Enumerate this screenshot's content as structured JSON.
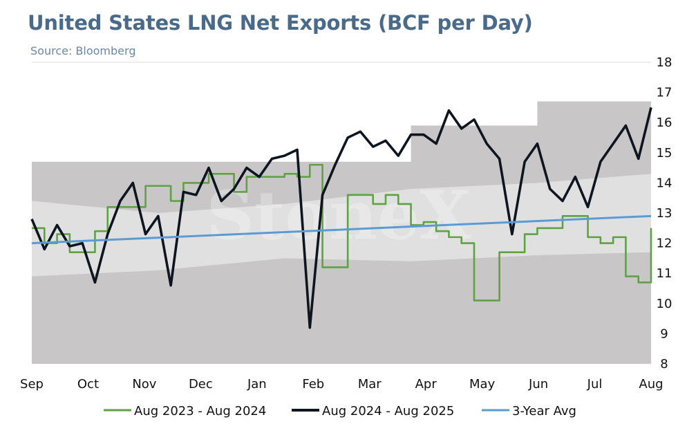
{
  "header": {
    "title": "United States LNG Net Exports (BCF per Day)",
    "source": "Source: Bloomberg"
  },
  "watermark": "StoneX",
  "chart_data": {
    "type": "line",
    "xlabel": "",
    "ylabel": "",
    "ylim": [
      8,
      18
    ],
    "yticks": [
      8,
      9,
      10,
      11,
      12,
      13,
      14,
      15,
      16,
      17,
      18
    ],
    "x_months": [
      "Sep",
      "Oct",
      "Nov",
      "Dec",
      "Jan",
      "Feb",
      "Mar",
      "Apr",
      "May",
      "Jun",
      "Jul",
      "Aug"
    ],
    "x_note": "x values are week indices from start of September (0) to mid-August (49)",
    "legend_position": "bottom",
    "colors": {
      "aug23": "#5ea243",
      "aug24": "#0d1620",
      "avg3y": "#5b9bd5",
      "band_outer": "#c8c6c6",
      "band_inner": "#e0e0e0"
    },
    "range_band": {
      "x": [
        0,
        10,
        20,
        30,
        40,
        49
      ],
      "max": [
        14.7,
        14.7,
        14.7,
        15.9,
        16.7,
        16.7
      ],
      "min": [
        8.0,
        8.0,
        8.0,
        8.0,
        8.0,
        8.0
      ]
    },
    "inner_band": {
      "x": [
        0,
        10,
        20,
        30,
        40,
        49
      ],
      "upper": [
        13.4,
        13.0,
        13.3,
        13.8,
        14.0,
        14.3
      ],
      "lower": [
        10.9,
        11.1,
        11.5,
        11.4,
        11.6,
        11.7
      ]
    },
    "series": [
      {
        "name": "Aug 2023 - Aug 2024",
        "x": [
          0,
          1,
          2,
          3,
          4,
          5,
          6,
          7,
          8,
          9,
          10,
          11,
          12,
          13,
          14,
          15,
          16,
          17,
          18,
          19,
          20,
          21,
          22,
          23,
          24,
          25,
          26,
          27,
          28,
          29,
          30,
          31,
          32,
          33,
          34,
          35,
          36,
          37,
          38,
          39,
          40,
          41,
          42,
          43,
          44,
          45,
          46,
          47,
          48,
          49
        ],
        "values": [
          12.5,
          12.0,
          12.3,
          11.7,
          11.7,
          12.4,
          13.2,
          13.2,
          13.2,
          13.9,
          13.9,
          13.4,
          14.0,
          14.0,
          14.3,
          14.3,
          13.7,
          14.2,
          14.2,
          14.2,
          14.3,
          14.2,
          14.6,
          11.2,
          11.2,
          13.6,
          13.6,
          13.3,
          13.6,
          13.3,
          12.6,
          12.7,
          12.4,
          12.2,
          12.0,
          10.1,
          10.1,
          11.7,
          11.7,
          12.3,
          12.5,
          12.5,
          12.9,
          12.9,
          12.2,
          12.0,
          12.2,
          10.9,
          10.7,
          12.5
        ]
      },
      {
        "name": "Aug 2024 - Aug 2025",
        "x": [
          0,
          1,
          2,
          3,
          4,
          5,
          6,
          7,
          8,
          9,
          10,
          11,
          12,
          13,
          14,
          15,
          16,
          17,
          18,
          19,
          20,
          21,
          22,
          23,
          24,
          25,
          26,
          27,
          28,
          29,
          30,
          31,
          32,
          33,
          34,
          35,
          36,
          37,
          38,
          39,
          40,
          41,
          42,
          43,
          44,
          45,
          46,
          47,
          48,
          49
        ],
        "values": [
          12.8,
          11.8,
          12.6,
          11.9,
          12.0,
          10.7,
          12.3,
          13.4,
          14.0,
          12.3,
          12.9,
          10.6,
          13.7,
          13.6,
          14.5,
          13.4,
          13.8,
          14.5,
          14.2,
          14.8,
          14.9,
          15.1,
          9.2,
          13.6,
          14.6,
          15.5,
          15.7,
          15.2,
          15.4,
          14.9,
          15.6,
          15.6,
          15.3,
          16.4,
          15.8,
          16.1,
          15.3,
          14.8,
          12.3,
          14.7,
          15.3,
          13.8,
          13.4,
          14.2,
          13.2,
          14.7,
          15.3,
          15.9,
          14.8,
          16.5
        ]
      },
      {
        "name": "3-Year Avg",
        "x": [
          0,
          49
        ],
        "values": [
          12.0,
          12.9
        ]
      }
    ]
  }
}
